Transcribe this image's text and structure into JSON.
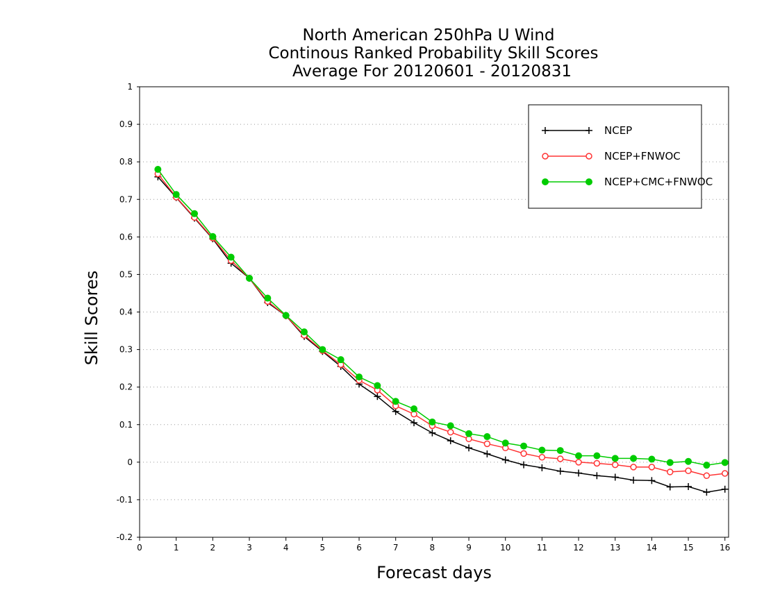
{
  "chart_data": {
    "type": "line",
    "title_lines": [
      "North American 250hPa U Wind",
      "Continous Ranked Probability Skill Scores",
      "Average For 20120601 - 20120831"
    ],
    "xlabel": "Forecast days",
    "ylabel": "Skill Scores",
    "xlim": [
      0,
      16.1
    ],
    "ylim": [
      -0.2,
      1
    ],
    "x_ticks": [
      0,
      1,
      2,
      3,
      4,
      5,
      6,
      7,
      8,
      9,
      10,
      11,
      12,
      13,
      14,
      15,
      16
    ],
    "y_ticks": [
      -0.2,
      -0.1,
      0,
      0.1,
      0.2,
      0.3,
      0.4,
      0.5,
      0.6,
      0.7,
      0.8,
      0.9,
      1
    ],
    "y_tick_labels": [
      "-0.2",
      "-0.1",
      "0",
      "0.1",
      "0.2",
      "0.3",
      "0.4",
      "0.5",
      "0.6",
      "0.7",
      "0.8",
      "0.9",
      "1"
    ],
    "grid": "horizontal dotted",
    "legend_position": "top-right",
    "x": [
      0.5,
      1,
      1.5,
      2,
      2.5,
      3,
      3.5,
      4,
      4.5,
      5,
      5.5,
      6,
      6.5,
      7,
      7.5,
      8,
      8.5,
      9,
      9.5,
      10,
      10.5,
      11,
      11.5,
      12,
      12.5,
      13,
      13.5,
      14,
      14.5,
      15,
      15.5,
      16
    ],
    "series": [
      {
        "name": "NCEP",
        "color": "#000000",
        "marker": "plus",
        "values": [
          0.76,
          0.705,
          0.65,
          0.595,
          0.53,
          0.49,
          0.425,
          0.39,
          0.335,
          0.295,
          0.255,
          0.208,
          0.175,
          0.135,
          0.105,
          0.078,
          0.057,
          0.038,
          0.022,
          0.006,
          -0.007,
          -0.015,
          -0.024,
          -0.029,
          -0.036,
          -0.04,
          -0.048,
          -0.049,
          -0.066,
          -0.065,
          -0.08,
          -0.072
        ]
      },
      {
        "name": "NCEP+FNWOC",
        "color": "#ff3333",
        "marker": "open-circle",
        "values": [
          0.768,
          0.706,
          0.652,
          0.597,
          0.537,
          0.49,
          0.428,
          0.39,
          0.338,
          0.297,
          0.26,
          0.218,
          0.192,
          0.15,
          0.128,
          0.097,
          0.08,
          0.062,
          0.049,
          0.038,
          0.023,
          0.013,
          0.009,
          0.0,
          -0.003,
          -0.007,
          -0.013,
          -0.013,
          -0.026,
          -0.023,
          -0.036,
          -0.03
        ]
      },
      {
        "name": "NCEP+CMC+FNWOC",
        "color": "#00cc00",
        "marker": "filled-circle",
        "values": [
          0.78,
          0.713,
          0.662,
          0.601,
          0.546,
          0.49,
          0.437,
          0.391,
          0.347,
          0.3,
          0.273,
          0.227,
          0.204,
          0.162,
          0.142,
          0.107,
          0.097,
          0.076,
          0.068,
          0.051,
          0.043,
          0.032,
          0.031,
          0.017,
          0.017,
          0.01,
          0.01,
          0.008,
          -0.001,
          0.002,
          -0.008,
          -0.001
        ]
      }
    ]
  }
}
